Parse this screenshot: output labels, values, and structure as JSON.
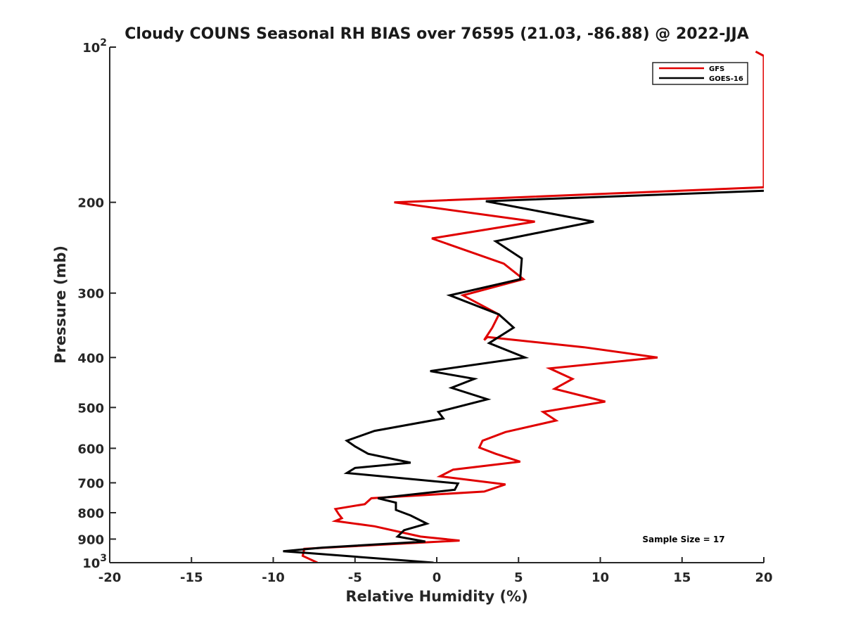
{
  "chart_data": {
    "type": "line",
    "title": "Cloudy COUNS Seasonal RH BIAS over 76595 (21.03, -86.88) @ 2022-JJA",
    "xlabel": "Relative Humidity (%)",
    "ylabel": "Pressure (mb)",
    "xlim": [
      -20,
      20
    ],
    "ylim": [
      100,
      1000
    ],
    "yscale": "log",
    "y_reversed": true,
    "x_ticks": [
      "-20",
      "-15",
      "-10",
      "-5",
      "0",
      "5",
      "10",
      "15",
      "20"
    ],
    "x_tick_values": [
      -20,
      -15,
      -10,
      -5,
      0,
      5,
      10,
      15,
      20
    ],
    "y_ticks": [
      {
        "value": 100,
        "base": "10",
        "exp": "2"
      },
      {
        "value": 200,
        "label": "200"
      },
      {
        "value": 300,
        "label": "300"
      },
      {
        "value": 400,
        "label": "400"
      },
      {
        "value": 500,
        "label": "500"
      },
      {
        "value": 600,
        "label": "600"
      },
      {
        "value": 700,
        "label": "700"
      },
      {
        "value": 800,
        "label": "800"
      },
      {
        "value": 900,
        "label": "900"
      },
      {
        "value": 1000,
        "base": "10",
        "exp": "3"
      }
    ],
    "legend_position": "top-right",
    "annotation": "Sample Size = 17",
    "series": [
      {
        "name": "GFS",
        "color": "#e00000",
        "points": [
          [
            19.5,
            102
          ],
          [
            20,
            104
          ],
          [
            20,
            187
          ],
          [
            -2.6,
            200
          ],
          [
            6.0,
            218
          ],
          [
            -0.3,
            235
          ],
          [
            4.1,
            263
          ],
          [
            5.3,
            282
          ],
          [
            1.6,
            303
          ],
          [
            3.8,
            330
          ],
          [
            3.4,
            350
          ],
          [
            2.9,
            370
          ],
          [
            3.1,
            365
          ],
          [
            9.0,
            382
          ],
          [
            13.5,
            400
          ],
          [
            6.9,
            420
          ],
          [
            8.3,
            440
          ],
          [
            7.2,
            460
          ],
          [
            10.3,
            487
          ],
          [
            6.5,
            510
          ],
          [
            7.3,
            530
          ],
          [
            4.2,
            558
          ],
          [
            2.8,
            580
          ],
          [
            2.6,
            598
          ],
          [
            3.6,
            615
          ],
          [
            5.1,
            637
          ],
          [
            1.0,
            660
          ],
          [
            0.2,
            680
          ],
          [
            4.2,
            705
          ],
          [
            2.9,
            728
          ],
          [
            -4.0,
            750
          ],
          [
            -4.4,
            770
          ],
          [
            -6.2,
            787
          ],
          [
            -6.0,
            805
          ],
          [
            -5.8,
            820
          ],
          [
            -6.2,
            830
          ],
          [
            -3.8,
            850
          ],
          [
            -1.0,
            890
          ],
          [
            1.4,
            906
          ],
          [
            -8.1,
            940
          ],
          [
            -8.2,
            970
          ],
          [
            -7.3,
            1000
          ]
        ]
      },
      {
        "name": "GOES-16",
        "color": "#000000",
        "points": [
          [
            20,
            190
          ],
          [
            3.0,
            199
          ],
          [
            9.6,
            218
          ],
          [
            3.6,
            238
          ],
          [
            5.2,
            257
          ],
          [
            5.1,
            282
          ],
          [
            0.8,
            303
          ],
          [
            3.8,
            330
          ],
          [
            4.7,
            350
          ],
          [
            3.2,
            375
          ],
          [
            5.4,
            400
          ],
          [
            -0.4,
            425
          ],
          [
            2.3,
            440
          ],
          [
            0.9,
            458
          ],
          [
            3.1,
            482
          ],
          [
            0.1,
            510
          ],
          [
            0.4,
            525
          ],
          [
            -3.8,
            555
          ],
          [
            -5.5,
            580
          ],
          [
            -5.0,
            595
          ],
          [
            -4.2,
            615
          ],
          [
            -1.6,
            640
          ],
          [
            -5.0,
            655
          ],
          [
            -5.5,
            670
          ],
          [
            1.3,
            702
          ],
          [
            1.1,
            722
          ],
          [
            -3.6,
            750
          ],
          [
            -2.5,
            765
          ],
          [
            -2.5,
            790
          ],
          [
            -1.6,
            810
          ],
          [
            -0.6,
            840
          ],
          [
            -2.0,
            865
          ],
          [
            -2.4,
            890
          ],
          [
            -0.7,
            910
          ],
          [
            -7.0,
            935
          ],
          [
            -9.4,
            950
          ],
          [
            -7.9,
            958
          ],
          [
            -0.2,
            1000
          ]
        ]
      }
    ]
  }
}
